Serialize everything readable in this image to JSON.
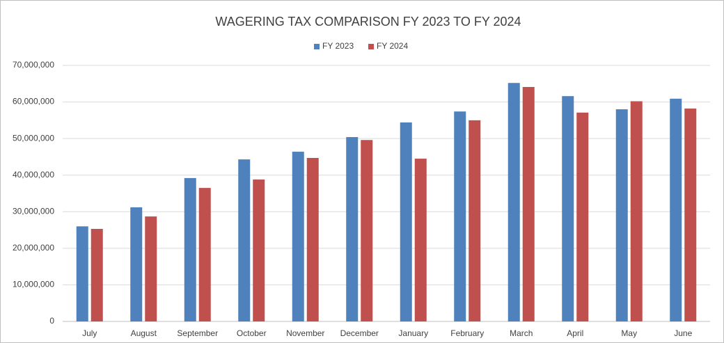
{
  "chart_data": {
    "type": "bar",
    "title": "WAGERING TAX COMPARISON FY 2023 TO FY 2024",
    "categories": [
      "July",
      "August",
      "September",
      "October",
      "November",
      "December",
      "January",
      "February",
      "March",
      "April",
      "May",
      "June"
    ],
    "series": [
      {
        "name": "FY 2023",
        "color": "#4f81bd",
        "values": [
          26000000,
          31200000,
          39200000,
          44300000,
          46400000,
          50400000,
          54400000,
          57400000,
          65200000,
          61600000,
          58000000,
          60900000
        ]
      },
      {
        "name": "FY 2024",
        "color": "#c0504d",
        "values": [
          25300000,
          28700000,
          36500000,
          38800000,
          44700000,
          49600000,
          44500000,
          55000000,
          64100000,
          57100000,
          60200000,
          58200000
        ]
      }
    ],
    "ylim": [
      0,
      70000000
    ],
    "yticks": [
      0,
      {
        "value": 10000000,
        "label": "10,000,000"
      },
      {
        "value": 20000000,
        "label": "20,000,000"
      },
      {
        "value": 30000000,
        "label": "30,000,000"
      },
      {
        "value": 40000000,
        "label": "40,000,000"
      },
      {
        "value": 50000000,
        "label": "50,000,000"
      },
      {
        "value": 60000000,
        "label": "60,000,000"
      },
      {
        "value": 70000000,
        "label": "70,000,000"
      }
    ],
    "grid": true,
    "legend": "top"
  }
}
